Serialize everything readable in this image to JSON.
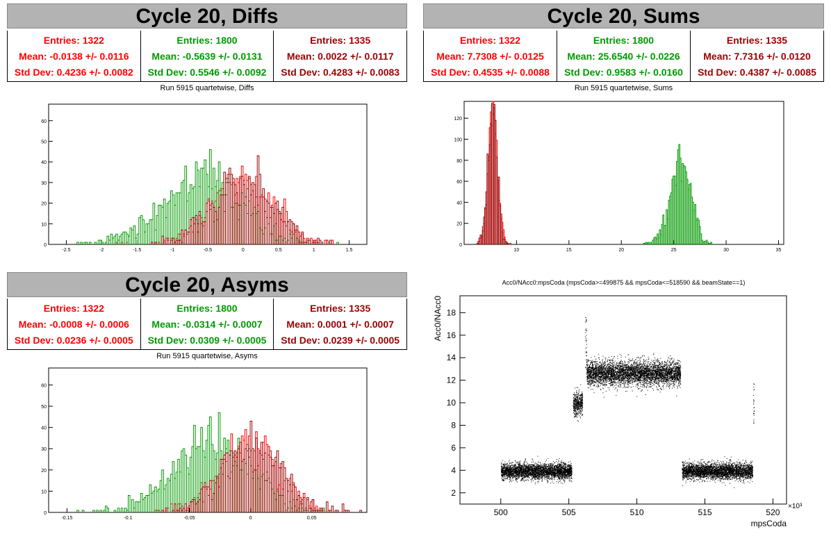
{
  "colors": {
    "c0": "#ff0000",
    "c1": "#009900",
    "c2": "#990000"
  },
  "panels": {
    "diffs": {
      "title": "Cycle 20, Diffs",
      "subtitle": "Run 5915 quartetwise, Diffs",
      "stats": [
        {
          "entries": "Entries: 1322",
          "mean": "Mean: -0.0138 +/- 0.0116",
          "std": "Std Dev: 0.4236 +/- 0.0082"
        },
        {
          "entries": "Entries: 1800",
          "mean": "Mean: -0.5639 +/- 0.0131",
          "std": "Std Dev: 0.5546 +/- 0.0092"
        },
        {
          "entries": "Entries: 1335",
          "mean": "Mean: 0.0022 +/- 0.0117",
          "std": "Std Dev: 0.4283 +/- 0.0083"
        }
      ]
    },
    "sums": {
      "title": "Cycle 20, Sums",
      "subtitle": "Run 5915 quartetwise, Sums",
      "stats": [
        {
          "entries": "Entries: 1322",
          "mean": "Mean: 7.7308 +/- 0.0125",
          "std": "Std Dev: 0.4535 +/- 0.0088"
        },
        {
          "entries": "Entries: 1800",
          "mean": "Mean: 25.6540 +/- 0.0226",
          "std": "Std Dev: 0.9583 +/- 0.0160"
        },
        {
          "entries": "Entries: 1335",
          "mean": "Mean: 7.7316 +/- 0.0120",
          "std": "Std Dev: 0.4387 +/- 0.0085"
        }
      ]
    },
    "asyms": {
      "title": "Cycle 20, Asyms",
      "subtitle": "Run 5915 quartetwise, Asyms",
      "stats": [
        {
          "entries": "Entries: 1322",
          "mean": "Mean: -0.0008 +/- 0.0006",
          "std": "Std Dev: 0.0236 +/- 0.0005"
        },
        {
          "entries": "Entries: 1800",
          "mean": "Mean: -0.0314 +/- 0.0007",
          "std": "Std Dev: 0.0309 +/- 0.0005"
        },
        {
          "entries": "Entries: 1335",
          "mean": "Mean: 0.0001 +/- 0.0007",
          "std": "Std Dev: 0.0239 +/- 0.0005"
        }
      ]
    }
  },
  "chart_data": [
    {
      "type": "histogram",
      "title": "Run 5915 quartetwise, Diffs",
      "xlim": [
        -2.75,
        1.75
      ],
      "ylim": [
        0,
        68
      ],
      "xticks": [
        -2.5,
        -2,
        -1.5,
        -1,
        -0.5,
        0,
        0.5,
        1,
        1.5
      ],
      "xticklabels": [
        "-2.5",
        "-2",
        "-1.5",
        "-1",
        "-0.5",
        "0",
        "0.5",
        "1",
        "1.5"
      ],
      "yticks": [
        0,
        10,
        20,
        30,
        40,
        50,
        60
      ],
      "series": [
        {
          "entries": 1322,
          "mean": -0.0138,
          "std": 0.4236
        },
        {
          "entries": 1800,
          "mean": -0.5639,
          "std": 0.5546
        },
        {
          "entries": 1335,
          "mean": 0.0022,
          "std": 0.4283
        }
      ]
    },
    {
      "type": "histogram",
      "title": "Run 5915 quartetwise, Sums",
      "xlim": [
        5,
        35.5
      ],
      "ylim": [
        0,
        136
      ],
      "xticks": [
        10,
        15,
        20,
        25,
        30,
        35
      ],
      "xticklabels": [
        "10",
        "15",
        "20",
        "25",
        "30",
        "35"
      ],
      "yticks": [
        0,
        20,
        40,
        60,
        80,
        100,
        120
      ],
      "series": [
        {
          "entries": 1322,
          "mean": 7.7308,
          "std": 0.4535
        },
        {
          "entries": 1800,
          "mean": 25.654,
          "std": 0.9583
        },
        {
          "entries": 1335,
          "mean": 7.7316,
          "std": 0.4387
        }
      ]
    },
    {
      "type": "histogram",
      "title": "Run 5915 quartetwise, Asyms",
      "xlim": [
        -0.165,
        0.095
      ],
      "ylim": [
        0,
        68
      ],
      "xticks": [
        -0.15,
        -0.1,
        -0.05,
        0,
        0.05
      ],
      "xticklabels": [
        "-0.15",
        "-0.1",
        "-0.05",
        "0",
        "0.05"
      ],
      "yticks": [
        0,
        10,
        20,
        30,
        40,
        50,
        60
      ],
      "series": [
        {
          "entries": 1322,
          "mean": -0.0008,
          "std": 0.0236
        },
        {
          "entries": 1800,
          "mean": -0.0314,
          "std": 0.0309
        },
        {
          "entries": 1335,
          "mean": 0.0001,
          "std": 0.0239
        }
      ]
    },
    {
      "type": "scatter",
      "title": "Acc0/NAcc0:mpsCoda (mpsCoda>=499875 && mpsCoda<=518590 && beamState==1)",
      "xlabel": "mpsCoda",
      "ylabel": "Acc0/NAcc0",
      "xlim": [
        497,
        521
      ],
      "ylim": [
        1,
        19.5
      ],
      "xticks": [
        500,
        505,
        510,
        515,
        520
      ],
      "xticklabels": [
        "500",
        "505",
        "510",
        "515",
        "520"
      ],
      "xscale_label": "×10³",
      "yticks": [
        2,
        4,
        6,
        8,
        10,
        12,
        14,
        16,
        18
      ],
      "yticklabels": [
        "2",
        "4",
        "6",
        "8",
        "10",
        "12",
        "14",
        "16",
        "18"
      ],
      "clusters": [
        {
          "x_range": [
            500,
            505.2
          ],
          "y_center": 3.9,
          "y_spread": 0.35
        },
        {
          "x_range": [
            505.3,
            506
          ],
          "y_center": 9.9,
          "y_spread": 0.5
        },
        {
          "x_range": [
            506.3,
            513.2
          ],
          "y_center": 12.6,
          "y_spread": 0.55
        },
        {
          "x_range": [
            513.3,
            518.5
          ],
          "y_center": 3.9,
          "y_spread": 0.35
        }
      ]
    }
  ]
}
